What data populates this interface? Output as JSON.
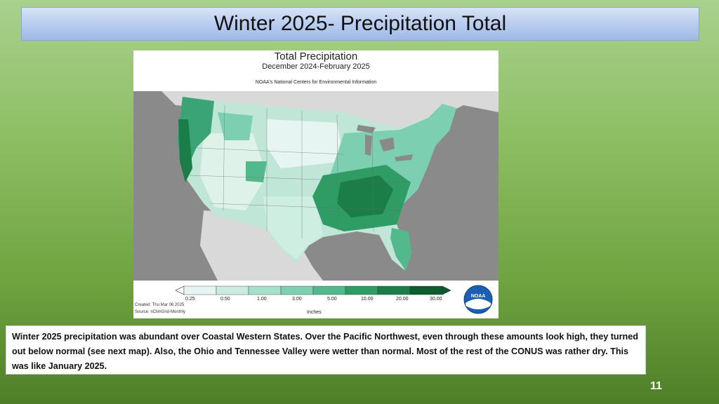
{
  "slide": {
    "title": "Winter 2025- Precipitation Total",
    "page_number": "11",
    "caption": "Winter 2025 precipitation was abundant over Coastal Western States. Over the Pacific Northwest, even through these amounts look high, they turned out below normal (see next map).  Also, the Ohio and Tennessee Valley were wetter than normal.  Most of the rest of the CONUS was rather dry. This was like January 2025."
  },
  "map": {
    "title": "Total Precipitation",
    "subtitle": "December 2024-February 2025",
    "source_line": "NOAA's National Centers for Environmental Information",
    "created": "Created: Thu Mar 06 2025",
    "source": "Source: nClimGrid-Monthly",
    "logo_text": "NOAA",
    "legend": {
      "unit": "Inches",
      "ticks": [
        "0.25",
        "0.50",
        "1.00",
        "3.00",
        "5.00",
        "10.00",
        "20.00",
        "30.00"
      ],
      "colors": [
        "#e6f5f1",
        "#c9ebe0",
        "#a8dfcb",
        "#7ccfb0",
        "#52b98d",
        "#2f9c65",
        "#1b7d48",
        "#0d5c30"
      ]
    },
    "background_color": "#8a8a8a"
  }
}
